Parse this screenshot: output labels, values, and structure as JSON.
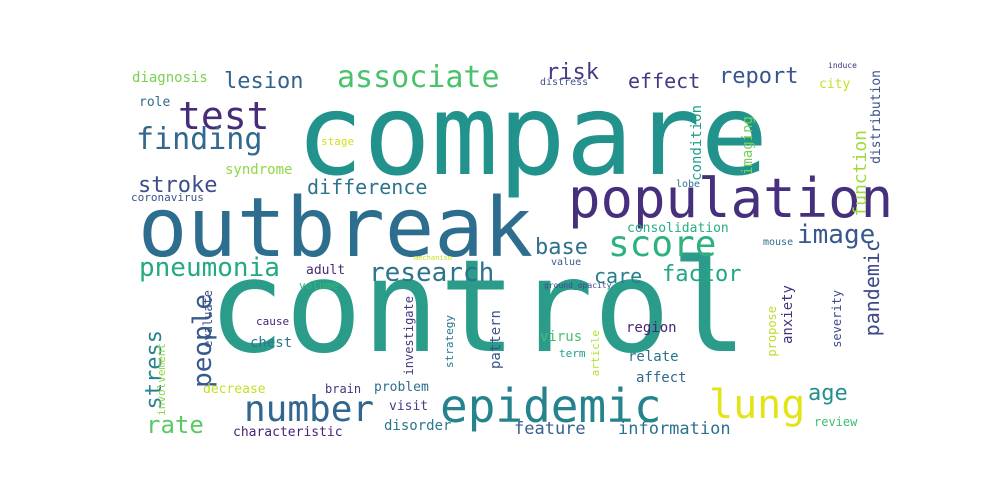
{
  "words": [
    {
      "text": "compare",
      "color": "#22928c"
    },
    {
      "text": "control",
      "color": "#2a9c89"
    },
    {
      "text": "outbreak",
      "color": "#2d6e8e"
    },
    {
      "text": "population",
      "color": "#46307e"
    },
    {
      "text": "epidemic",
      "color": "#25838e"
    },
    {
      "text": "test",
      "color": "#472c7a"
    },
    {
      "text": "score",
      "color": "#2db27d"
    },
    {
      "text": "number",
      "color": "#31668e"
    },
    {
      "text": "lung",
      "color": "#e3e418"
    },
    {
      "text": "associate",
      "color": "#4ac16d"
    },
    {
      "text": "finding",
      "color": "#31688e"
    },
    {
      "text": "pneumonia",
      "color": "#24aa83"
    },
    {
      "text": "research",
      "color": "#2c738e"
    },
    {
      "text": "people",
      "color": "#38598c"
    },
    {
      "text": "image",
      "color": "#38588c"
    },
    {
      "text": "lesion",
      "color": "#33628d"
    },
    {
      "text": "risk",
      "color": "#443b84"
    },
    {
      "text": "effect",
      "color": "#453882"
    },
    {
      "text": "report",
      "color": "#3a548c"
    },
    {
      "text": "stroke",
      "color": "#3d4e8a"
    },
    {
      "text": "difference",
      "color": "#2c738e"
    },
    {
      "text": "base",
      "color": "#2e6f8e"
    },
    {
      "text": "care",
      "color": "#277f8e"
    },
    {
      "text": "factor",
      "color": "#21a685"
    },
    {
      "text": "rate",
      "color": "#5cc863"
    },
    {
      "text": "age",
      "color": "#21918c"
    },
    {
      "text": "pandemic",
      "color": "#3e4a89"
    },
    {
      "text": "stress",
      "color": "#26828e"
    },
    {
      "text": "feature",
      "color": "#355f8d"
    },
    {
      "text": "information",
      "color": "#2c728e"
    },
    {
      "text": "function",
      "color": "#9fda3a"
    },
    {
      "text": "diagnosis",
      "color": "#7ad151"
    },
    {
      "text": "syndrome",
      "color": "#8fd744"
    },
    {
      "text": "condition",
      "color": "#1f9e89"
    },
    {
      "text": "imaging",
      "color": "#75d054"
    },
    {
      "text": "distribution",
      "color": "#3b528b"
    },
    {
      "text": "city",
      "color": "#c8e020"
    },
    {
      "text": "role",
      "color": "#306a8e"
    },
    {
      "text": "stage",
      "color": "#d2e21b"
    },
    {
      "text": "coronavirus",
      "color": "#3b528b"
    },
    {
      "text": "adult",
      "color": "#482878"
    },
    {
      "text": "volume",
      "color": "#35b779"
    },
    {
      "text": "consolidation",
      "color": "#27ad81"
    },
    {
      "text": "mouse",
      "color": "#2e6f8e"
    },
    {
      "text": "value",
      "color": "#37598c"
    },
    {
      "text": "severity",
      "color": "#3e4a89"
    },
    {
      "text": "propose",
      "color": "#bade28"
    },
    {
      "text": "anxiety",
      "color": "#46327e"
    },
    {
      "text": "evaluate",
      "color": "#3b528b"
    },
    {
      "text": "involvement",
      "color": "#8ed645"
    },
    {
      "text": "cause",
      "color": "#482677"
    },
    {
      "text": "chest",
      "color": "#2a788e"
    },
    {
      "text": "decrease",
      "color": "#c2df23"
    },
    {
      "text": "brain",
      "color": "#453581"
    },
    {
      "text": "problem",
      "color": "#2f6c8e"
    },
    {
      "text": "visit",
      "color": "#433e85"
    },
    {
      "text": "investigate",
      "color": "#453882"
    },
    {
      "text": "strategy",
      "color": "#2a788e"
    },
    {
      "text": "pattern",
      "color": "#3b528b"
    },
    {
      "text": "virus",
      "color": "#48c16e"
    },
    {
      "text": "term",
      "color": "#1fa187"
    },
    {
      "text": "article",
      "color": "#b5de2b"
    },
    {
      "text": "region",
      "color": "#482475"
    },
    {
      "text": "relate",
      "color": "#2c728e"
    },
    {
      "text": "affect",
      "color": "#31688e"
    },
    {
      "text": "characteristic",
      "color": "#482475"
    },
    {
      "text": "disorder",
      "color": "#2a788e"
    },
    {
      "text": "review",
      "color": "#3dbc74"
    },
    {
      "text": "induce",
      "color": "#472d7b"
    },
    {
      "text": "distress",
      "color": "#3b528b"
    },
    {
      "text": "lobe",
      "color": "#2d718e"
    },
    {
      "text": "mechanism",
      "color": "#c8e020"
    },
    {
      "text": "ground_opacity",
      "color": "#3e4c8a"
    }
  ]
}
